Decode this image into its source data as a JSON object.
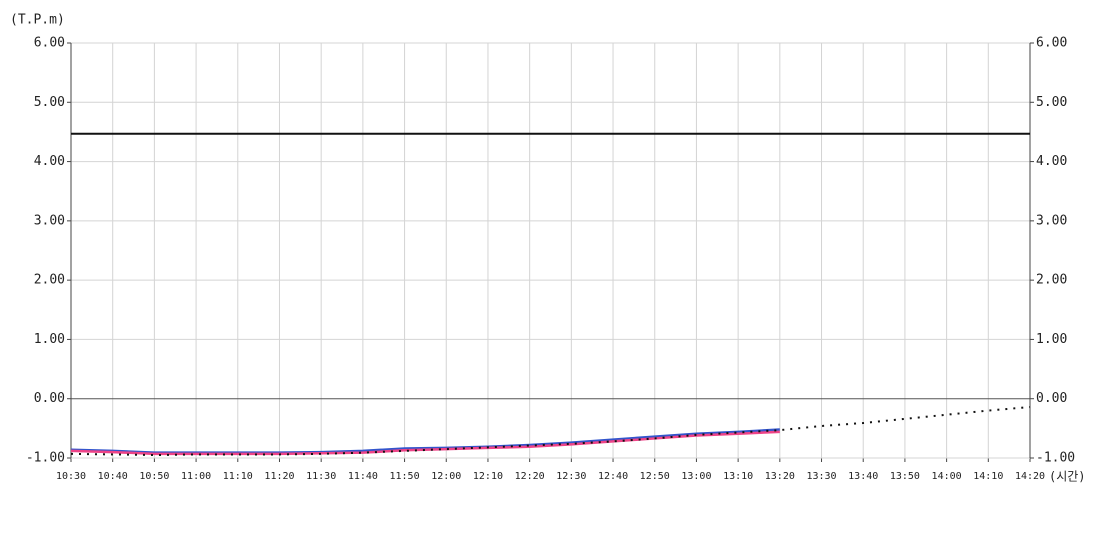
{
  "chart_data": {
    "type": "line",
    "y_label": "(T.P.m)",
    "x_label": "(시간)",
    "categories": [
      "10:30",
      "10:40",
      "10:50",
      "11:00",
      "11:10",
      "11:20",
      "11:30",
      "11:40",
      "11:50",
      "12:00",
      "12:10",
      "12:20",
      "12:30",
      "12:40",
      "12:50",
      "13:00",
      "13:10",
      "13:20",
      "13:30",
      "13:40",
      "13:50",
      "14:00",
      "14:10",
      "14:20"
    ],
    "series": [
      {
        "color": "#3355cc",
        "values": [
          -0.86,
          -0.88,
          -0.91,
          -0.91,
          -0.91,
          -0.91,
          -0.9,
          -0.88,
          -0.84,
          -0.83,
          -0.81,
          -0.78,
          -0.74,
          -0.69,
          -0.64,
          -0.59,
          -0.56,
          -0.52,
          null,
          null,
          null,
          null,
          null,
          null
        ]
      },
      {
        "color": "#ee4488",
        "values": [
          -0.88,
          -0.9,
          -0.93,
          -0.93,
          -0.93,
          -0.93,
          -0.92,
          -0.91,
          -0.87,
          -0.85,
          -0.83,
          -0.81,
          -0.77,
          -0.72,
          -0.67,
          -0.62,
          -0.59,
          -0.56,
          null,
          null,
          null,
          null,
          null,
          null
        ]
      },
      {
        "color": "#111111",
        "dashed": true,
        "values": [
          -0.93,
          -0.94,
          -0.95,
          -0.94,
          -0.94,
          -0.94,
          -0.93,
          -0.91,
          -0.88,
          -0.85,
          -0.82,
          -0.79,
          -0.76,
          -0.72,
          -0.67,
          -0.61,
          -0.57,
          -0.53,
          -0.46,
          -0.41,
          -0.34,
          -0.27,
          -0.2,
          -0.14
        ]
      }
    ],
    "hlines": [
      {
        "value": 4.47,
        "color": "#111111"
      }
    ],
    "ylim": [
      -1,
      6
    ],
    "yticks": [
      {
        "value": -1,
        "label": "-1.00"
      },
      {
        "value": 0,
        "label": "0.00"
      },
      {
        "value": 1,
        "label": "1.00"
      },
      {
        "value": 2,
        "label": "2.00"
      },
      {
        "value": 3,
        "label": "3.00"
      },
      {
        "value": 4,
        "label": "4.00"
      },
      {
        "value": 5,
        "label": "5.00"
      },
      {
        "value": 6,
        "label": "6.00"
      }
    ],
    "y2lim": [
      -1,
      6
    ],
    "y2ticks": [
      {
        "value": -1,
        "label": "-1.00"
      },
      {
        "value": 0,
        "label": "0.00"
      },
      {
        "value": 1,
        "label": "1.00"
      },
      {
        "value": 2,
        "label": "2.00"
      },
      {
        "value": 3,
        "label": "3.00"
      },
      {
        "value": 4,
        "label": "4.00"
      },
      {
        "value": 5,
        "label": "5.00"
      },
      {
        "value": 6,
        "label": "6.00"
      }
    ],
    "grid": true
  }
}
